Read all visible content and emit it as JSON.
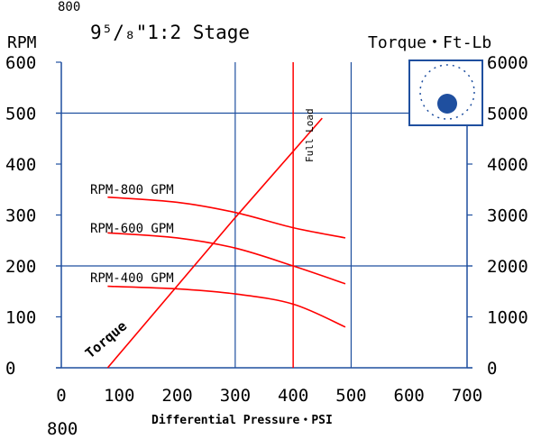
{
  "page": {
    "title": "9⁵/₈\"1:2 Stage",
    "corner_top": "800",
    "corner_bottom": "800"
  },
  "colors": {
    "grid": "#1f4f9f",
    "curves": "#ff0000",
    "axis": "#1f4f9f",
    "logo": "#1f4f9f"
  },
  "chart_data": {
    "type": "line",
    "title": "9⁵/₈\"1:2 Stage",
    "xlabel": "Differential Pressure・PSI",
    "ylabel_left": "RPM",
    "ylabel_right": "Torque・Ft-Lb",
    "xlim": [
      0,
      700
    ],
    "ylim_left": [
      0,
      600
    ],
    "ylim_right": [
      0,
      6000
    ],
    "x_ticks": [
      0,
      100,
      200,
      300,
      400,
      500,
      600,
      700
    ],
    "y_ticks_left": [
      0,
      100,
      200,
      300,
      400,
      500,
      600
    ],
    "y_ticks_right": [
      0,
      1000,
      2000,
      3000,
      4000,
      5000,
      6000
    ],
    "vertical_line": {
      "x": 400,
      "label": "Full Load"
    },
    "series": [
      {
        "name": "RPM-800 GPM",
        "x": [
          80,
          200,
          300,
          400,
          490
        ],
        "values": [
          335,
          325,
          305,
          275,
          255
        ]
      },
      {
        "name": "RPM-600 GPM",
        "x": [
          80,
          200,
          300,
          400,
          490
        ],
        "values": [
          265,
          255,
          235,
          200,
          165
        ]
      },
      {
        "name": "RPM-400 GPM",
        "x": [
          80,
          200,
          300,
          400,
          490
        ],
        "values": [
          160,
          155,
          145,
          125,
          80
        ]
      },
      {
        "name": "Torque",
        "axis": "right",
        "x": [
          80,
          300,
          450
        ],
        "values": [
          0,
          2950,
          4900
        ]
      }
    ]
  }
}
